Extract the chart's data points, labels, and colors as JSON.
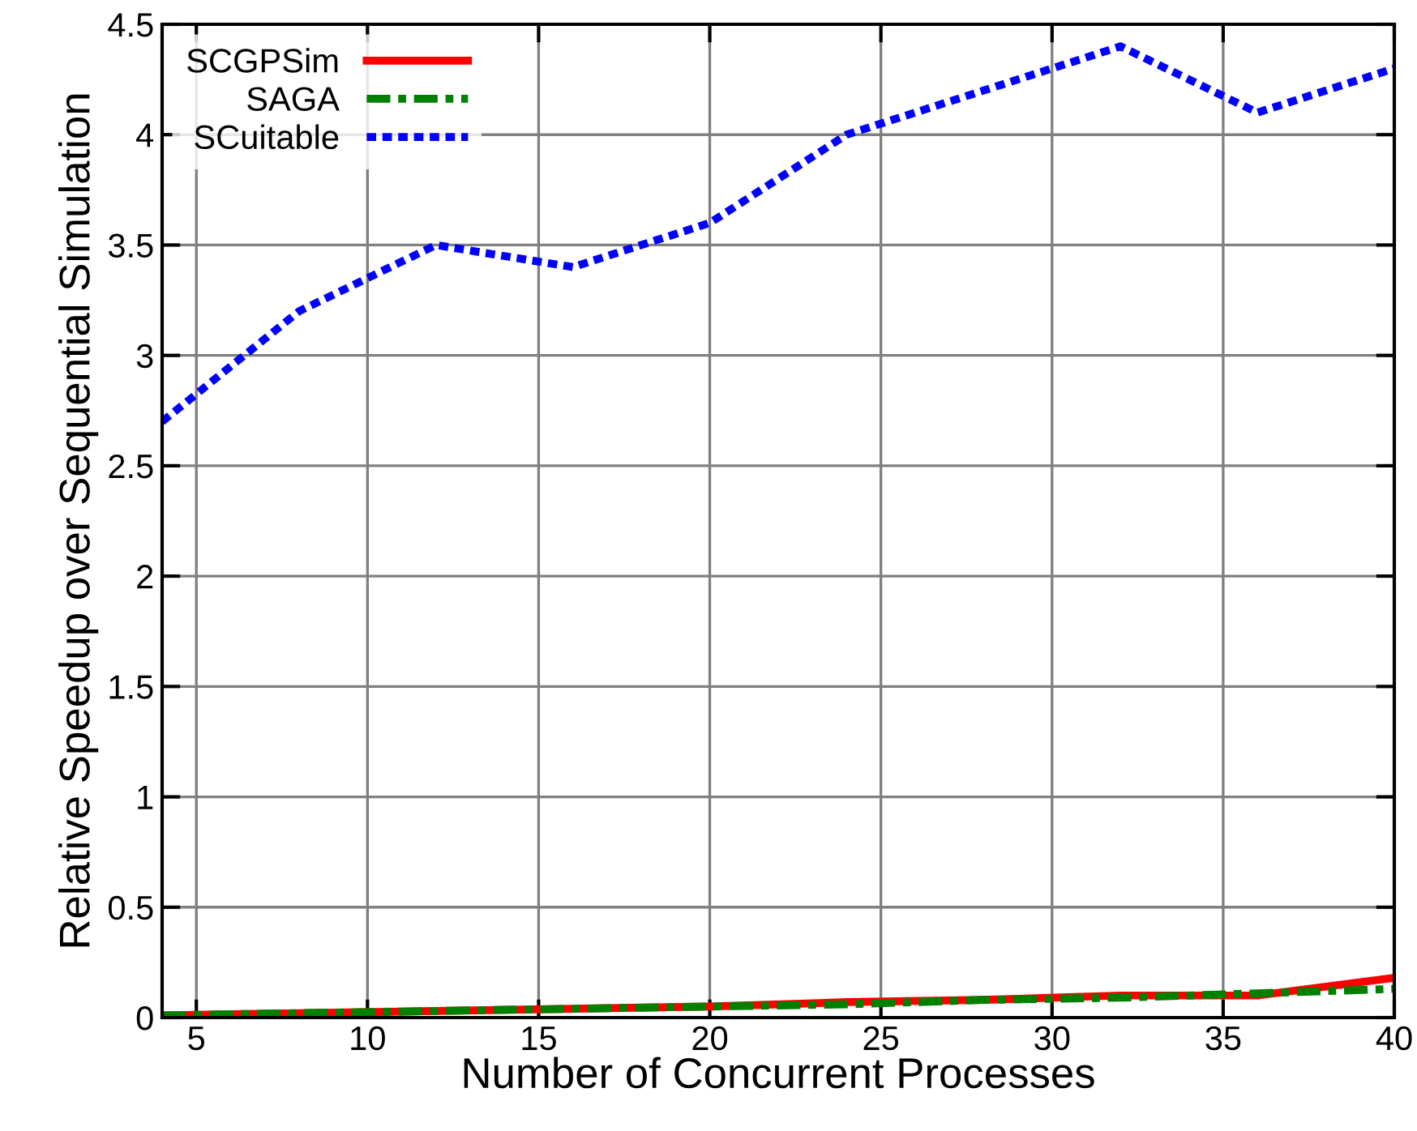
{
  "chart_data": {
    "type": "line",
    "xlabel": "Number of Concurrent Processes",
    "ylabel": "Relative Speedup over Sequential Simulation",
    "x": [
      4,
      8,
      12,
      16,
      20,
      24,
      28,
      32,
      36,
      40
    ],
    "series": [
      {
        "name": "SCGPSim",
        "color": "#ff0000",
        "line_style": "solid",
        "values": [
          0.01,
          0.02,
          0.03,
          0.04,
          0.05,
          0.07,
          0.08,
          0.1,
          0.1,
          0.18
        ]
      },
      {
        "name": "SAGA",
        "color": "#008000",
        "line_style": "dashdot",
        "values": [
          0.01,
          0.02,
          0.03,
          0.04,
          0.05,
          0.06,
          0.08,
          0.09,
          0.11,
          0.13
        ]
      },
      {
        "name": "SCuitable",
        "color": "#0000ff",
        "line_style": "dotted",
        "values": [
          2.7,
          3.2,
          3.5,
          3.4,
          3.6,
          4.0,
          4.2,
          4.4,
          4.1,
          4.3
        ]
      }
    ],
    "xlim": [
      4,
      40
    ],
    "ylim": [
      0,
      4.5
    ],
    "xticks": [
      5,
      10,
      15,
      20,
      25,
      30,
      35,
      40
    ],
    "yticks": [
      0,
      0.5,
      1,
      1.5,
      2,
      2.5,
      3,
      3.5,
      4,
      4.5
    ],
    "grid": true,
    "legend": "top left",
    "marker": "none"
  }
}
